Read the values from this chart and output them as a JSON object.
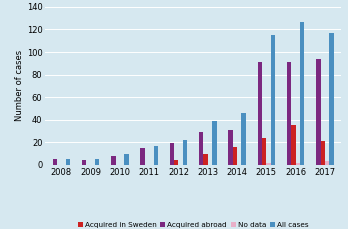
{
  "years": [
    2008,
    2009,
    2010,
    2011,
    2012,
    2013,
    2014,
    2015,
    2016,
    2017
  ],
  "acquired_sweden": [
    0,
    0,
    0,
    0,
    4,
    10,
    16,
    24,
    35,
    21
  ],
  "acquired_abroad": [
    5,
    4,
    8,
    15,
    19,
    29,
    31,
    91,
    91,
    94
  ],
  "no_data": [
    0,
    0,
    0,
    0,
    0,
    0,
    0,
    2,
    2,
    3
  ],
  "all_cases": [
    5,
    5,
    10,
    17,
    22,
    39,
    46,
    115,
    127,
    117
  ],
  "colors": {
    "acquired_sweden": "#cc2222",
    "acquired_abroad": "#7b2880",
    "no_data": "#e8afc8",
    "all_cases": "#4a8fc0"
  },
  "ylabel": "Number of cases",
  "ylim": [
    0,
    140
  ],
  "yticks": [
    0,
    20,
    40,
    60,
    80,
    100,
    120,
    140
  ],
  "background_color": "#d6e8f0",
  "legend_labels": [
    "Acquired in Sweden",
    "Acquired abroad",
    "No data",
    "All cases"
  ],
  "bar_width": 0.15
}
